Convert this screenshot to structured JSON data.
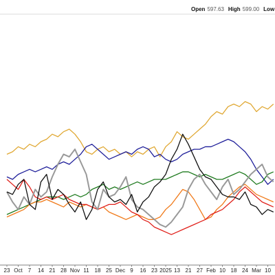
{
  "header": [
    {
      "label": "Open",
      "value": "597.63"
    },
    {
      "label": "High",
      "value": "599.00"
    },
    {
      "label": "Low"
    }
  ],
  "chart_data": {
    "type": "line",
    "categories": [
      "23",
      null,
      "Oct",
      null,
      "7",
      null,
      "14",
      null,
      "21",
      null,
      "28",
      null,
      "Nov",
      null,
      "11",
      null,
      "18",
      null,
      "25",
      null,
      "Dec",
      null,
      "9",
      null,
      "16",
      null,
      "23",
      null,
      "2025",
      null,
      "13",
      null,
      "21",
      null,
      "27",
      null,
      "Feb",
      null,
      "10",
      null,
      "18",
      null,
      "24",
      null,
      "Mar",
      null,
      "10",
      null
    ],
    "ylim": [
      0,
      100
    ],
    "series": [
      {
        "color": "#e0a833",
        "values": [
          44,
          45,
          47,
          46,
          48,
          47,
          49,
          50,
          52,
          51,
          53,
          54,
          52,
          49,
          45,
          44,
          46,
          47,
          45,
          46,
          44,
          45,
          43,
          45,
          44,
          46,
          47,
          43,
          47,
          49,
          53,
          51,
          50,
          52,
          54,
          56,
          59,
          61,
          60,
          63,
          64,
          63,
          65,
          64,
          61,
          63,
          62,
          64
        ]
      },
      {
        "color": "#1f1f9a",
        "values": [
          35,
          34,
          36,
          37,
          38,
          37,
          38,
          39,
          38,
          40,
          41,
          40,
          42,
          44,
          47,
          48,
          46,
          44,
          42,
          43,
          44,
          45,
          44,
          46,
          47,
          46,
          43,
          44,
          42,
          41,
          42,
          44,
          45,
          46,
          46,
          47,
          47,
          48,
          49,
          50,
          49,
          47,
          45,
          42,
          38,
          35,
          32,
          34
        ]
      },
      {
        "color": "#1e7a1e",
        "values": [
          20,
          21,
          22,
          23,
          24,
          25,
          26,
          27,
          27,
          27,
          26,
          27,
          28,
          27,
          28,
          30,
          31,
          32,
          30,
          31,
          30,
          31,
          32,
          33,
          32,
          33,
          34,
          34,
          34,
          35,
          36,
          37,
          37,
          36,
          35,
          36,
          35,
          34,
          34,
          35,
          36,
          37,
          36,
          34,
          32,
          33,
          36,
          37
        ]
      },
      {
        "color": "#f07a1a",
        "values": [
          19,
          20,
          21,
          22,
          24,
          25,
          25,
          26,
          25,
          24,
          23,
          25,
          24,
          23,
          24,
          23,
          22,
          23,
          21,
          20,
          19,
          18,
          19,
          20,
          19,
          18,
          18,
          19,
          22,
          24,
          27,
          30,
          29,
          26,
          22,
          18,
          19,
          22,
          24,
          27,
          29,
          31,
          32,
          30,
          28,
          27,
          26,
          25
        ]
      },
      {
        "color": "#e0201a",
        "values": [
          34,
          32,
          30,
          34,
          31,
          27,
          26,
          27,
          26,
          27,
          28,
          26,
          25,
          24,
          24,
          23,
          22,
          23,
          24,
          24,
          25,
          23,
          21,
          20,
          18,
          17,
          15,
          14,
          13,
          12,
          13,
          14,
          15,
          16,
          17,
          18,
          20,
          21,
          22,
          24,
          26,
          29,
          31,
          29,
          27,
          25,
          24,
          23
        ]
      },
      {
        "color": "#999999",
        "values": [
          29,
          25,
          22,
          27,
          24,
          30,
          27,
          29,
          35,
          40,
          44,
          43,
          46,
          41,
          36,
          25,
          22,
          30,
          27,
          28,
          31,
          35,
          26,
          23,
          22,
          20,
          18,
          16,
          15,
          17,
          20,
          23,
          30,
          34,
          36,
          32,
          29,
          26,
          31,
          34,
          28,
          30,
          33,
          36,
          38,
          40,
          35,
          33
        ]
      },
      {
        "color": "#111111",
        "values": [
          29,
          28,
          32,
          34,
          24,
          22,
          33,
          36,
          26,
          30,
          28,
          24,
          21,
          25,
          18,
          22,
          30,
          33,
          27,
          25,
          26,
          24,
          28,
          21,
          25,
          27,
          31,
          33,
          36,
          42,
          46,
          52,
          48,
          43,
          38,
          35,
          34,
          31,
          28,
          27,
          27,
          26,
          29,
          24,
          23,
          20,
          22,
          21
        ]
      }
    ]
  }
}
